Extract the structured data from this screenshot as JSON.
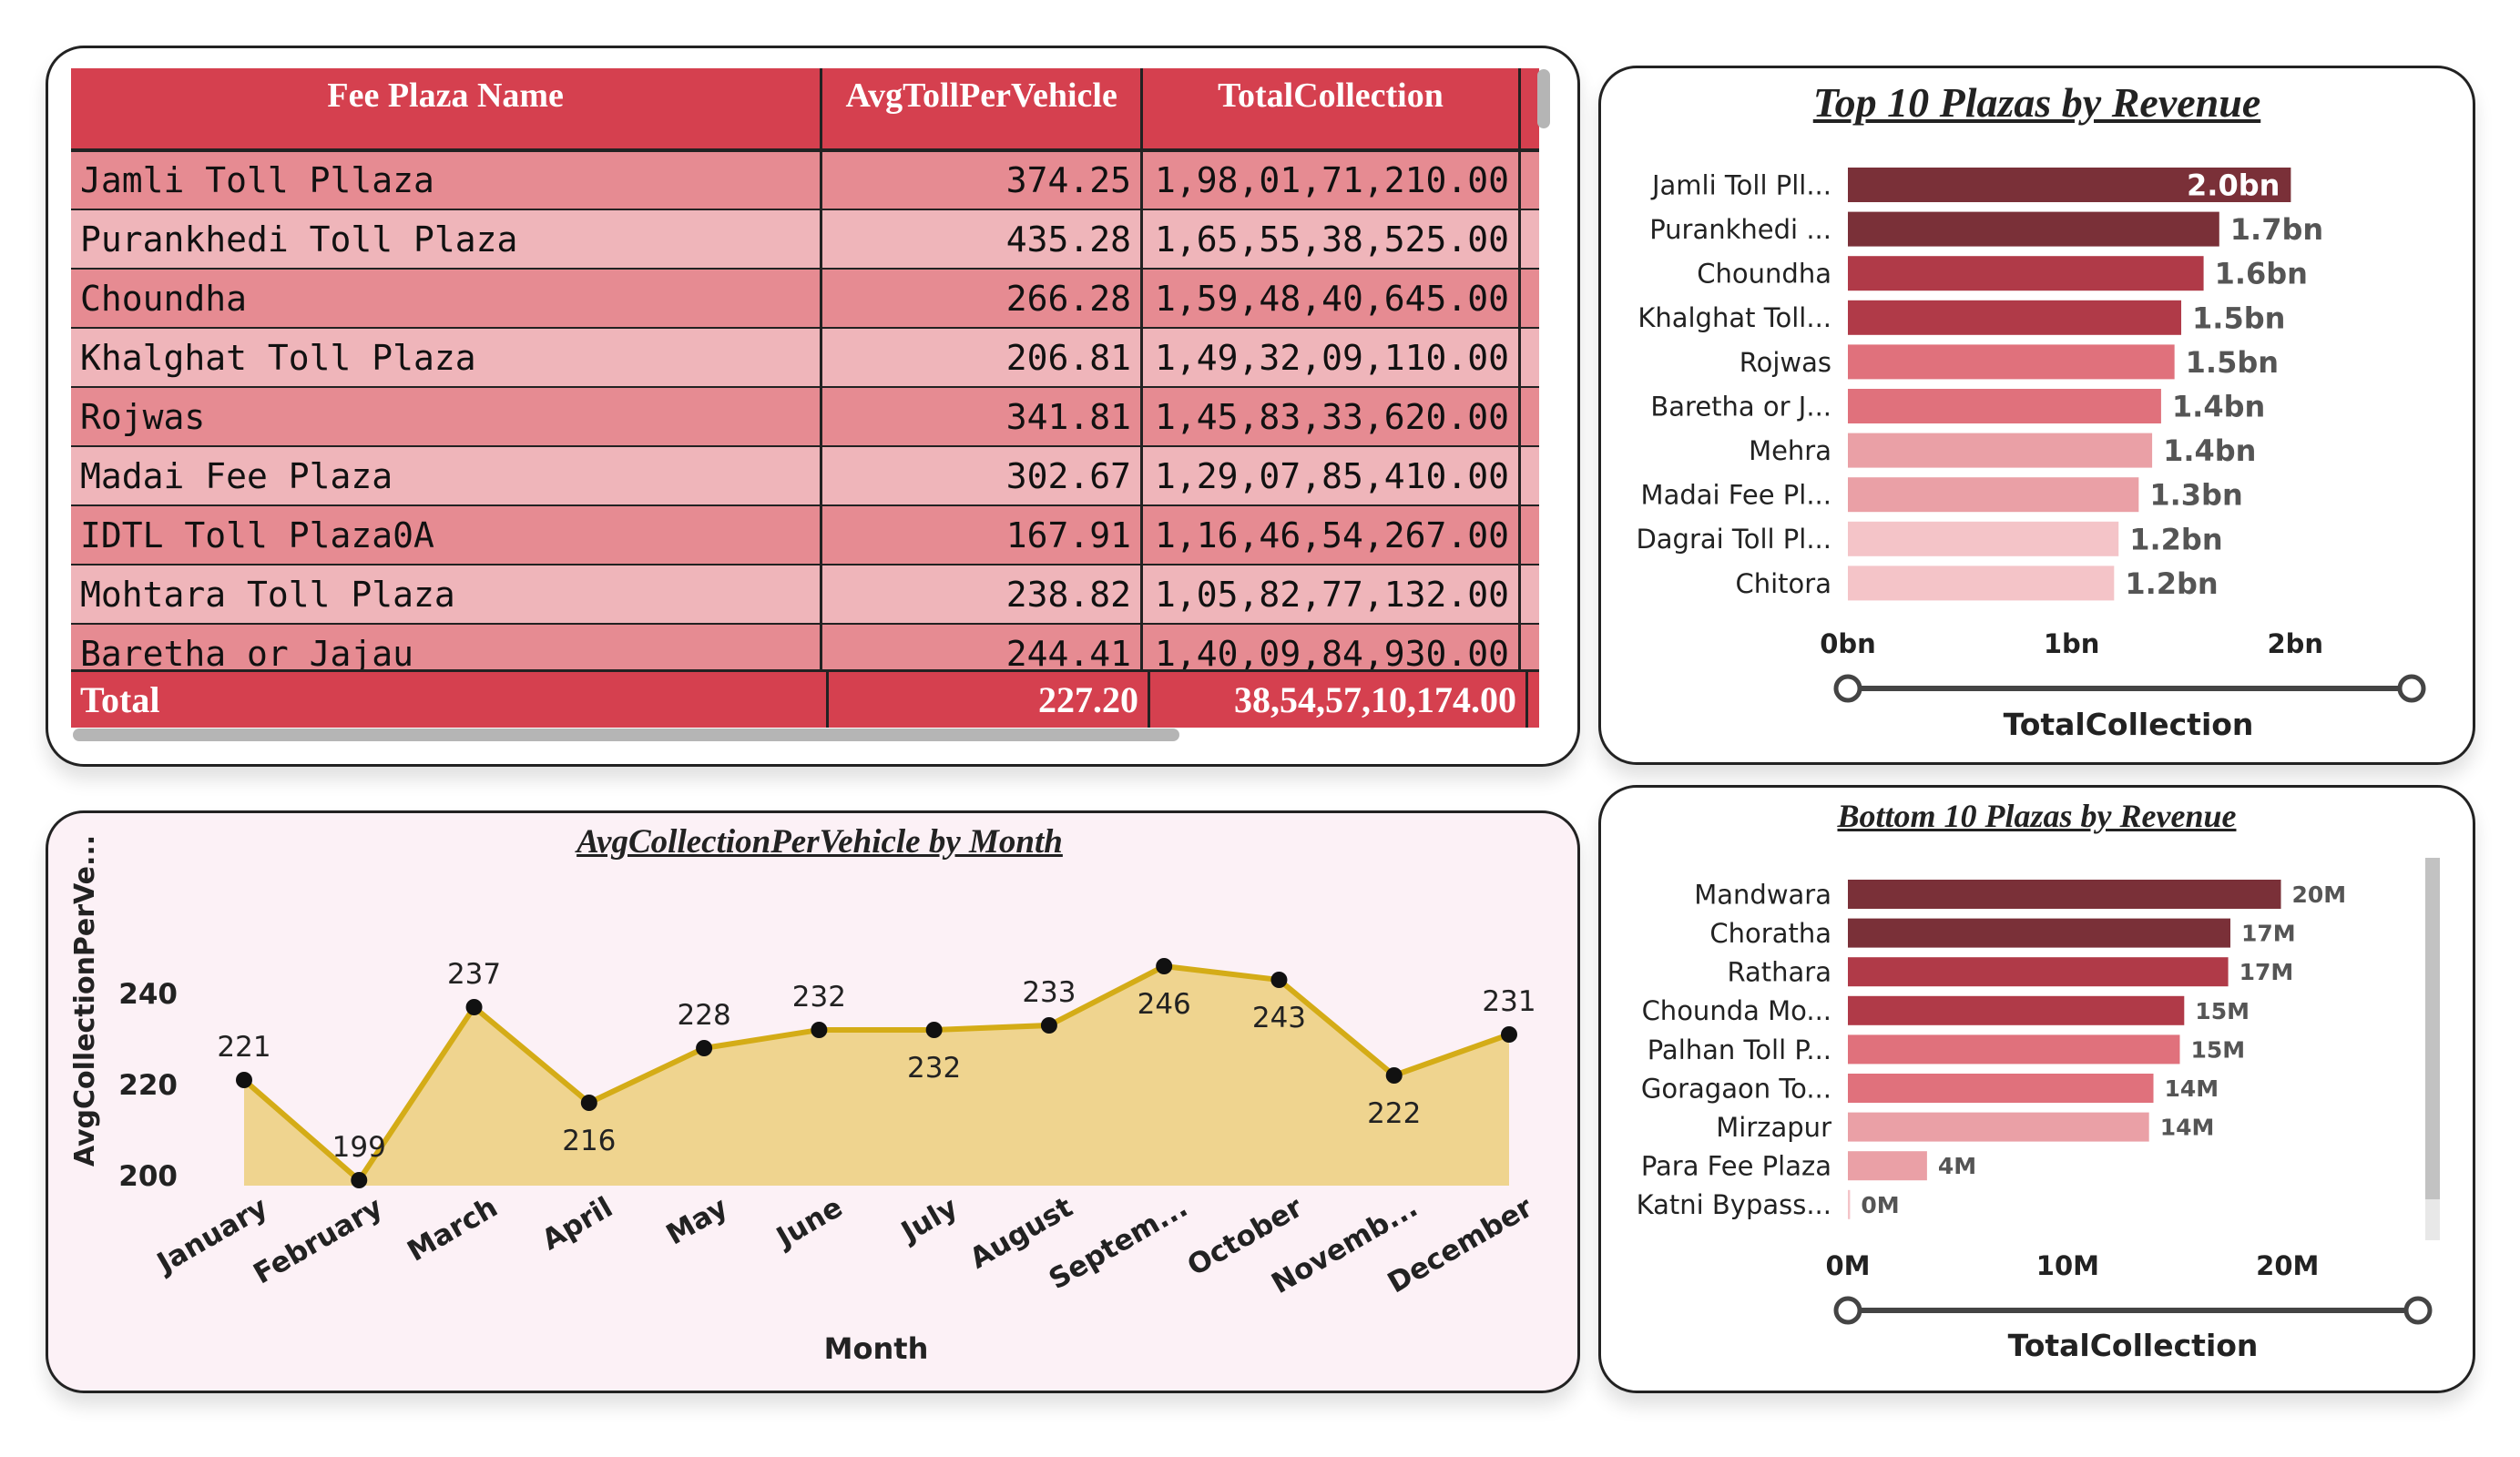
{
  "table": {
    "columns": [
      "Fee Plaza Name",
      "AvgTollPerVehicle",
      "TotalCollection"
    ],
    "rows": [
      [
        "Jamli Toll Pllaza",
        "374.25",
        "1,98,01,71,210.00"
      ],
      [
        "Purankhedi Toll Plaza",
        "435.28",
        "1,65,55,38,525.00"
      ],
      [
        "Choundha",
        "266.28",
        "1,59,48,40,645.00"
      ],
      [
        "Khalghat Toll Plaza",
        "206.81",
        "1,49,32,09,110.00"
      ],
      [
        "Rojwas",
        "341.81",
        "1,45,83,33,620.00"
      ],
      [
        "Madai Fee Plaza",
        "302.67",
        "1,29,07,85,410.00"
      ],
      [
        "IDTL Toll Plaza0A",
        "167.91",
        "1,16,46,54,267.00"
      ],
      [
        "Mohtara Toll Plaza",
        "238.82",
        "1,05,82,77,132.00"
      ],
      [
        "Baretha or Jajau",
        "244.41",
        "1,40,09,84,930.00"
      ]
    ],
    "total": [
      "Total",
      "227.20",
      "38,54,57,10,174.00"
    ]
  },
  "chart_data": [
    {
      "type": "bar",
      "title": "Top 10 Plazas by Revenue",
      "xlabel": "TotalCollection",
      "ylabel": "",
      "categories": [
        "Jamli Toll Pll...",
        "Purankhedi ...",
        "Choundha",
        "Khalghat Toll...",
        "Rojwas",
        "Baretha or J...",
        "Mehra",
        "Madai Fee Pl...",
        "Dagrai Toll Pl...",
        "Chitora"
      ],
      "values": [
        1.98,
        1.66,
        1.59,
        1.49,
        1.46,
        1.4,
        1.36,
        1.3,
        1.21,
        1.19
      ],
      "value_labels": [
        "2.0bn",
        "1.7bn",
        "1.6bn",
        "1.5bn",
        "1.5bn",
        "1.4bn",
        "1.4bn",
        "1.3bn",
        "1.2bn",
        "1.2bn"
      ],
      "xlim": [
        0,
        2.3
      ],
      "xticks": [
        0,
        1,
        2
      ],
      "xtick_labels": [
        "0bn",
        "1bn",
        "2bn"
      ],
      "colors": [
        "#7a3038",
        "#7a3038",
        "#b03a48",
        "#b03a48",
        "#e0717c",
        "#e0717c",
        "#eaa0a6",
        "#eaa0a6",
        "#f4c4c8",
        "#f4c4c8"
      ]
    },
    {
      "type": "line",
      "title": "AvgCollectionPerVehicle by Month",
      "xlabel": "Month",
      "ylabel": "AvgCollectionPerVe...",
      "x": [
        "January",
        "February",
        "March",
        "April",
        "May",
        "June",
        "July",
        "August",
        "Septem...",
        "October",
        "Novemb...",
        "December"
      ],
      "values": [
        221,
        199,
        237,
        216,
        228,
        232,
        232,
        233,
        246,
        243,
        222,
        231
      ],
      "label_position": [
        "above",
        "above",
        "above",
        "below",
        "above",
        "above",
        "below",
        "above",
        "below",
        "below",
        "below",
        "above"
      ],
      "yticks": [
        200,
        220,
        240
      ],
      "ylim": [
        190,
        252
      ],
      "line_color": "#d4ac17",
      "fill_color": "#efd48f"
    },
    {
      "type": "bar",
      "title": "Bottom 10 Plazas by Revenue",
      "xlabel": "TotalCollection",
      "ylabel": "",
      "categories": [
        "Mandwara",
        "Choratha",
        "Rathara",
        "Chounda Mo...",
        "Palhan Toll P...",
        "Goragaon To...",
        "Mirzapur",
        "Para Fee Plaza",
        "Katni Bypass..."
      ],
      "values": [
        19.7,
        17.4,
        17.3,
        15.3,
        15.1,
        13.9,
        13.7,
        3.6,
        0.1
      ],
      "value_labels": [
        "20M",
        "17M",
        "17M",
        "15M",
        "15M",
        "14M",
        "14M",
        "4M",
        "0M"
      ],
      "xlim": [
        0,
        23.2
      ],
      "xticks": [
        0,
        10,
        20
      ],
      "xtick_labels": [
        "0M",
        "10M",
        "20M"
      ],
      "colors": [
        "#7a3038",
        "#7a3038",
        "#b03a48",
        "#b03a48",
        "#e0717c",
        "#e0717c",
        "#eaa0a6",
        "#eaa0a6",
        "#f4c4c8"
      ]
    }
  ]
}
